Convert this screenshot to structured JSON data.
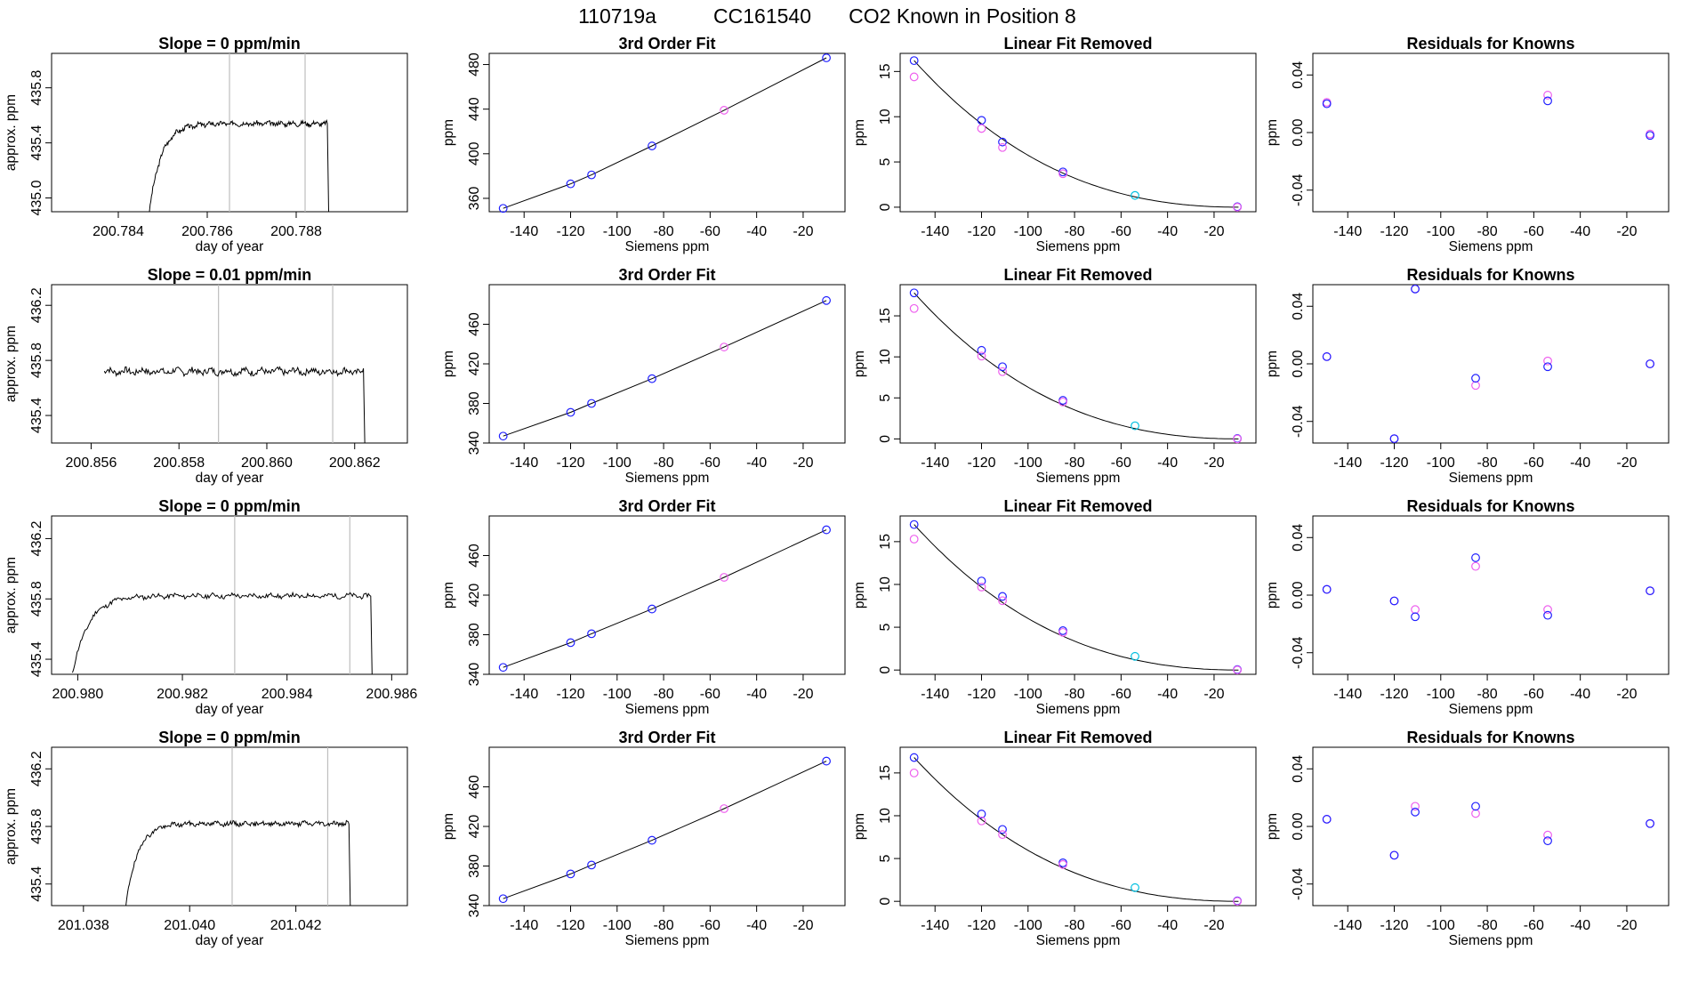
{
  "page": {
    "title_parts": [
      "110719a",
      "CC161540",
      "CO2 Known in Position  8"
    ]
  },
  "colors": {
    "line": "#000000",
    "vline": "#bebebe",
    "blue": "#2020ff",
    "magenta": "#ee60ee",
    "cyan": "#00bfe0",
    "red": "#ff3030"
  },
  "labels": {
    "col1_x": "day of year",
    "col1_y": "approx. ppm",
    "fit_x": "Siemens ppm",
    "fit_y": "ppm",
    "fit_title": "3rd Order Fit",
    "lin_title": "Linear Fit Removed",
    "res_title": "Residuals for Knowns"
  },
  "chart_data": {
    "type": "grid_of_plots",
    "siemens_x": [
      -149,
      -120,
      -111,
      -85,
      -54,
      -10
    ],
    "siemens_xlim": [
      -155,
      -2
    ],
    "siemens_ticks": [
      "-140",
      "-120",
      "-100",
      "-80",
      "-60",
      "-40",
      "-20"
    ],
    "siemens_tick_values": [
      -140,
      -120,
      -100,
      -80,
      -60,
      -40,
      -20
    ],
    "rows": [
      {
        "trace": {
          "title": "Slope =  0  ppm/min",
          "xlim": [
            200.7825,
            200.7905
          ],
          "xticks": [
            "200.784",
            "200.786",
            "200.788"
          ],
          "xtick_values": [
            200.784,
            200.786,
            200.788
          ],
          "ylim": [
            434.9,
            436.05
          ],
          "yticks": [
            "435.0",
            "435.4",
            "435.8"
          ],
          "ytick_values": [
            435.0,
            435.4,
            435.8
          ],
          "vlines": [
            200.7865,
            200.7882
          ],
          "x_start": 200.7847,
          "x_end": 200.7887,
          "rise_start": 434.9,
          "plateau": 435.54,
          "drop_to": 434.9,
          "rise_frac": 0.28,
          "noise": 0.015,
          "seed": 3
        },
        "fit": {
          "title": "3rd Order Fit",
          "ylim": [
            348,
            490
          ],
          "yticks": [
            "360",
            "400",
            "440",
            "480"
          ],
          "ytick_values": [
            360,
            400,
            440,
            480
          ],
          "y": [
            351,
            373,
            381,
            407,
            439,
            486
          ],
          "colors": [
            "blue",
            "blue",
            "blue",
            "blue",
            "magenta",
            "blue"
          ]
        },
        "linear_removed": {
          "title": "Linear Fit Removed",
          "ylim": [
            -0.5,
            17
          ],
          "yticks": [
            "0",
            "5",
            "10",
            "15"
          ],
          "ytick_values": [
            0,
            5,
            10,
            15
          ],
          "curve_a": 16.2,
          "pts": [
            {
              "x": -149,
              "y": 16.2,
              "c": "blue"
            },
            {
              "x": -149,
              "y": 14.4,
              "c": "magenta"
            },
            {
              "x": -120,
              "y": 9.6,
              "c": "blue"
            },
            {
              "x": -120,
              "y": 8.7,
              "c": "magenta"
            },
            {
              "x": -111,
              "y": 7.2,
              "c": "blue"
            },
            {
              "x": -111,
              "y": 6.6,
              "c": "magenta"
            },
            {
              "x": -85,
              "y": 3.9,
              "c": "blue"
            },
            {
              "x": -85,
              "y": 3.7,
              "c": "magenta"
            },
            {
              "x": -54,
              "y": 1.3,
              "c": "cyan"
            },
            {
              "x": -10,
              "y": 0.05,
              "c": "blue"
            },
            {
              "x": -10,
              "y": 0.0,
              "c": "magenta"
            }
          ]
        },
        "residuals": {
          "title": "Residuals for Knowns",
          "ylim": [
            -0.055,
            0.055
          ],
          "yticks": [
            "-0.04",
            "0.00",
            "0.04"
          ],
          "ytick_values": [
            -0.04,
            0.0,
            0.04
          ],
          "pts": [
            {
              "x": -149,
              "y": 0.021,
              "c": "magenta"
            },
            {
              "x": -149,
              "y": 0.02,
              "c": "blue"
            },
            {
              "x": -54,
              "y": 0.026,
              "c": "magenta"
            },
            {
              "x": -54,
              "y": 0.022,
              "c": "blue"
            },
            {
              "x": -10,
              "y": -0.001,
              "c": "magenta"
            },
            {
              "x": -10,
              "y": -0.002,
              "c": "blue"
            }
          ]
        }
      },
      {
        "trace": {
          "title": "Slope =  0.01  ppm/min",
          "xlim": [
            200.8551,
            200.8632
          ],
          "xticks": [
            "200.856",
            "200.858",
            "200.860",
            "200.862"
          ],
          "xtick_values": [
            200.856,
            200.858,
            200.86,
            200.862
          ],
          "ylim": [
            435.2,
            436.35
          ],
          "yticks": [
            "435.4",
            "435.8",
            "436.2"
          ],
          "ytick_values": [
            435.4,
            435.8,
            436.2
          ],
          "vlines": [
            200.8589,
            200.8615
          ],
          "x_start": 200.8563,
          "x_end": 200.8622,
          "rise_start": 435.68,
          "plateau": 435.72,
          "drop_to": 435.2,
          "rise_frac": 0.0,
          "noise": 0.022,
          "seed": 7
        },
        "fit": {
          "title": "3rd Order Fit",
          "ylim": [
            340,
            500
          ],
          "yticks": [
            "340",
            "380",
            "420",
            "460"
          ],
          "ytick_values": [
            340,
            380,
            420,
            460
          ],
          "y": [
            347,
            371,
            380,
            405,
            437,
            484
          ],
          "colors": [
            "blue",
            "blue",
            "blue",
            "blue",
            "magenta",
            "blue"
          ]
        },
        "linear_removed": {
          "title": "Linear Fit Removed",
          "ylim": [
            -0.5,
            18.8
          ],
          "yticks": [
            "0",
            "5",
            "10",
            "15"
          ],
          "ytick_values": [
            0,
            5,
            10,
            15
          ],
          "curve_a": 17.8,
          "pts": [
            {
              "x": -149,
              "y": 17.8,
              "c": "blue"
            },
            {
              "x": -149,
              "y": 15.9,
              "c": "magenta"
            },
            {
              "x": -120,
              "y": 10.8,
              "c": "blue"
            },
            {
              "x": -120,
              "y": 10.1,
              "c": "magenta"
            },
            {
              "x": -111,
              "y": 8.8,
              "c": "blue"
            },
            {
              "x": -111,
              "y": 8.2,
              "c": "magenta"
            },
            {
              "x": -85,
              "y": 4.7,
              "c": "blue"
            },
            {
              "x": -85,
              "y": 4.5,
              "c": "magenta"
            },
            {
              "x": -54,
              "y": 1.6,
              "c": "cyan"
            },
            {
              "x": -10,
              "y": 0.05,
              "c": "blue"
            },
            {
              "x": -10,
              "y": 0.0,
              "c": "magenta"
            }
          ]
        },
        "residuals": {
          "title": "Residuals for Knowns",
          "ylim": [
            -0.055,
            0.055
          ],
          "yticks": [
            "-0.04",
            "0.00",
            "0.04"
          ],
          "ytick_values": [
            -0.04,
            0.0,
            0.04
          ],
          "pts": [
            {
              "x": -149,
              "y": 0.005,
              "c": "magenta"
            },
            {
              "x": -149,
              "y": 0.005,
              "c": "blue"
            },
            {
              "x": -120,
              "y": -0.052,
              "c": "magenta"
            },
            {
              "x": -120,
              "y": -0.052,
              "c": "blue"
            },
            {
              "x": -111,
              "y": 0.052,
              "c": "magenta"
            },
            {
              "x": -111,
              "y": 0.052,
              "c": "blue"
            },
            {
              "x": -85,
              "y": -0.015,
              "c": "magenta"
            },
            {
              "x": -85,
              "y": -0.01,
              "c": "blue"
            },
            {
              "x": -54,
              "y": 0.002,
              "c": "magenta"
            },
            {
              "x": -54,
              "y": -0.002,
              "c": "blue"
            },
            {
              "x": -10,
              "y": 0.0,
              "c": "magenta"
            },
            {
              "x": -10,
              "y": 0.0,
              "c": "blue"
            }
          ]
        }
      },
      {
        "trace": {
          "title": "Slope =  0  ppm/min",
          "xlim": [
            200.9795,
            200.9863
          ],
          "xticks": [
            "200.980",
            "200.982",
            "200.984",
            "200.986"
          ],
          "xtick_values": [
            200.98,
            200.982,
            200.984,
            200.986
          ],
          "ylim": [
            435.3,
            436.35
          ],
          "yticks": [
            "435.4",
            "435.8",
            "436.2"
          ],
          "ytick_values": [
            435.4,
            435.8,
            436.2
          ],
          "vlines": [
            200.983,
            200.9852
          ],
          "x_start": 200.9799,
          "x_end": 200.9856,
          "rise_start": 435.3,
          "plateau": 435.82,
          "drop_to": 435.3,
          "rise_frac": 0.22,
          "noise": 0.014,
          "seed": 11
        },
        "fit": {
          "title": "3rd Order Fit",
          "ylim": [
            340,
            500
          ],
          "yticks": [
            "340",
            "380",
            "420",
            "460"
          ],
          "ytick_values": [
            340,
            380,
            420,
            460
          ],
          "y": [
            347,
            372,
            381,
            406,
            438,
            486
          ],
          "colors": [
            "blue",
            "blue",
            "blue",
            "blue",
            "magenta",
            "blue"
          ]
        },
        "linear_removed": {
          "title": "Linear Fit Removed",
          "ylim": [
            -0.5,
            18
          ],
          "yticks": [
            "0",
            "5",
            "10",
            "15"
          ],
          "ytick_values": [
            0,
            5,
            10,
            15
          ],
          "curve_a": 17.0,
          "pts": [
            {
              "x": -149,
              "y": 17.0,
              "c": "blue"
            },
            {
              "x": -149,
              "y": 15.3,
              "c": "magenta"
            },
            {
              "x": -120,
              "y": 10.4,
              "c": "blue"
            },
            {
              "x": -120,
              "y": 9.7,
              "c": "magenta"
            },
            {
              "x": -111,
              "y": 8.6,
              "c": "blue"
            },
            {
              "x": -111,
              "y": 8.1,
              "c": "magenta"
            },
            {
              "x": -85,
              "y": 4.6,
              "c": "blue"
            },
            {
              "x": -85,
              "y": 4.4,
              "c": "magenta"
            },
            {
              "x": -54,
              "y": 1.6,
              "c": "cyan"
            },
            {
              "x": -10,
              "y": 0.05,
              "c": "blue"
            },
            {
              "x": -10,
              "y": 0.0,
              "c": "magenta"
            }
          ]
        },
        "residuals": {
          "title": "Residuals for Knowns",
          "ylim": [
            -0.055,
            0.055
          ],
          "yticks": [
            "-0.04",
            "0.00",
            "0.04"
          ],
          "ytick_values": [
            -0.04,
            0.0,
            0.04
          ],
          "pts": [
            {
              "x": -149,
              "y": 0.004,
              "c": "magenta"
            },
            {
              "x": -149,
              "y": 0.004,
              "c": "blue"
            },
            {
              "x": -120,
              "y": -0.004,
              "c": "magenta"
            },
            {
              "x": -120,
              "y": -0.004,
              "c": "blue"
            },
            {
              "x": -111,
              "y": -0.01,
              "c": "magenta"
            },
            {
              "x": -111,
              "y": -0.015,
              "c": "blue"
            },
            {
              "x": -85,
              "y": 0.02,
              "c": "magenta"
            },
            {
              "x": -85,
              "y": 0.026,
              "c": "blue"
            },
            {
              "x": -54,
              "y": -0.01,
              "c": "magenta"
            },
            {
              "x": -54,
              "y": -0.014,
              "c": "blue"
            },
            {
              "x": -10,
              "y": 0.003,
              "c": "magenta"
            },
            {
              "x": -10,
              "y": 0.003,
              "c": "blue"
            }
          ]
        }
      },
      {
        "trace": {
          "title": "Slope =  0  ppm/min",
          "xlim": [
            201.0374,
            201.0441
          ],
          "xticks": [
            "201.038",
            "201.040",
            "201.042"
          ],
          "xtick_values": [
            201.038,
            201.04,
            201.042
          ],
          "ylim": [
            435.25,
            436.35
          ],
          "yticks": [
            "435.4",
            "435.8",
            "436.2"
          ],
          "ytick_values": [
            435.4,
            435.8,
            436.2
          ],
          "vlines": [
            201.0408,
            201.0426
          ],
          "x_start": 201.0388,
          "x_end": 201.043,
          "rise_start": 435.25,
          "plateau": 435.82,
          "drop_to": 435.25,
          "rise_frac": 0.22,
          "noise": 0.014,
          "seed": 19
        },
        "fit": {
          "title": "3rd Order Fit",
          "ylim": [
            340,
            500
          ],
          "yticks": [
            "340",
            "380",
            "420",
            "460"
          ],
          "ytick_values": [
            340,
            380,
            420,
            460
          ],
          "y": [
            347,
            372,
            381,
            406,
            438,
            486
          ],
          "colors": [
            "blue",
            "blue",
            "blue",
            "blue",
            "magenta",
            "blue"
          ]
        },
        "linear_removed": {
          "title": "Linear Fit Removed",
          "ylim": [
            -0.5,
            18
          ],
          "yticks": [
            "0",
            "5",
            "10",
            "15"
          ],
          "ytick_values": [
            0,
            5,
            10,
            15
          ],
          "curve_a": 16.8,
          "pts": [
            {
              "x": -149,
              "y": 16.8,
              "c": "blue"
            },
            {
              "x": -149,
              "y": 15.0,
              "c": "magenta"
            },
            {
              "x": -120,
              "y": 10.2,
              "c": "blue"
            },
            {
              "x": -120,
              "y": 9.4,
              "c": "magenta"
            },
            {
              "x": -111,
              "y": 8.4,
              "c": "blue"
            },
            {
              "x": -111,
              "y": 7.8,
              "c": "magenta"
            },
            {
              "x": -85,
              "y": 4.5,
              "c": "blue"
            },
            {
              "x": -85,
              "y": 4.3,
              "c": "magenta"
            },
            {
              "x": -54,
              "y": 1.6,
              "c": "cyan"
            },
            {
              "x": -10,
              "y": 0.05,
              "c": "blue"
            },
            {
              "x": -10,
              "y": 0.0,
              "c": "magenta"
            }
          ]
        },
        "residuals": {
          "title": "Residuals for Knowns",
          "ylim": [
            -0.055,
            0.055
          ],
          "yticks": [
            "-0.04",
            "0.00",
            "0.04"
          ],
          "ytick_values": [
            -0.04,
            0.0,
            0.04
          ],
          "pts": [
            {
              "x": -149,
              "y": 0.005,
              "c": "magenta"
            },
            {
              "x": -149,
              "y": 0.005,
              "c": "blue"
            },
            {
              "x": -120,
              "y": -0.02,
              "c": "magenta"
            },
            {
              "x": -120,
              "y": -0.02,
              "c": "blue"
            },
            {
              "x": -111,
              "y": 0.014,
              "c": "magenta"
            },
            {
              "x": -111,
              "y": 0.01,
              "c": "blue"
            },
            {
              "x": -85,
              "y": 0.009,
              "c": "magenta"
            },
            {
              "x": -85,
              "y": 0.014,
              "c": "blue"
            },
            {
              "x": -54,
              "y": -0.006,
              "c": "magenta"
            },
            {
              "x": -54,
              "y": -0.01,
              "c": "blue"
            },
            {
              "x": -10,
              "y": 0.002,
              "c": "magenta"
            },
            {
              "x": -10,
              "y": 0.002,
              "c": "blue"
            }
          ]
        }
      }
    ]
  }
}
